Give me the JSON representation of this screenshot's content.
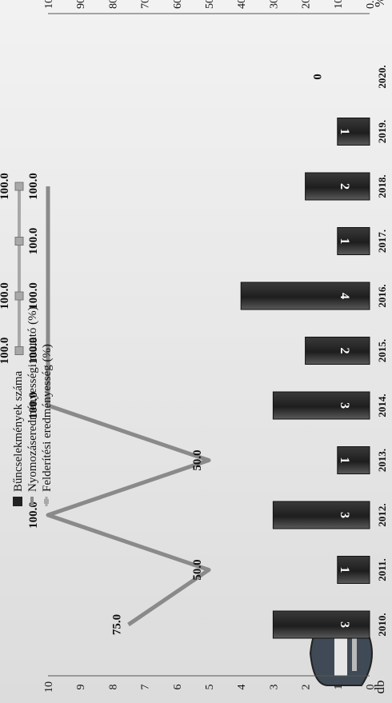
{
  "chart_data": {
    "type": "bar",
    "categories": [
      "2010.",
      "2011.",
      "2012.",
      "2013.",
      "2014.",
      "2015.",
      "2016.",
      "2017.",
      "2018.",
      "2019.",
      "2020."
    ],
    "left_axis": {
      "unit": "db",
      "range": [
        0,
        10
      ],
      "ticks": [
        "0",
        "1",
        "2",
        "3",
        "4",
        "5",
        "6",
        "7",
        "8",
        "9",
        "10"
      ]
    },
    "right_axis": {
      "unit": "%",
      "range": [
        0,
        100
      ],
      "ticks": [
        "0.0",
        "10.0",
        "20.0",
        "30.0",
        "40.0",
        "50.0",
        "60.0",
        "70.0",
        "80.0",
        "90.0",
        "100.0"
      ]
    },
    "series": [
      {
        "name": "Bűncselekmények száma",
        "type": "bar",
        "axis": "left",
        "color": "#333333",
        "values": [
          3,
          1,
          3,
          1,
          3,
          2,
          4,
          1,
          2,
          1,
          0
        ],
        "labels": [
          "3",
          "1",
          "3",
          "1",
          "3",
          "2",
          "4",
          "1",
          "2",
          "1",
          "0"
        ]
      },
      {
        "name": "Nyomozáseredményességi mutató (%)",
        "type": "line",
        "axis": "right",
        "color": "#8a8a8a",
        "values": [
          75.0,
          50.0,
          100.0,
          50.0,
          100.0,
          100.0,
          100.0,
          100.0,
          100.0,
          null,
          null
        ],
        "labels": [
          "75.0",
          "50.0",
          "100.0",
          "50.0",
          "100.0",
          "100.0",
          "100.0",
          "100.0",
          "100.0",
          "",
          ""
        ]
      },
      {
        "name": "Felderítési eredményesség (%)",
        "type": "line",
        "axis": "right",
        "color": "#a8a8a8",
        "values": [
          null,
          null,
          null,
          null,
          null,
          100.0,
          100.0,
          100.0,
          100.0,
          null,
          null
        ],
        "labels": [
          "",
          "",
          "",
          "",
          "",
          "100.0",
          "100.0",
          "",
          "100.0",
          "",
          ""
        ]
      }
    ],
    "legend_position": "top-left",
    "grid": false
  }
}
